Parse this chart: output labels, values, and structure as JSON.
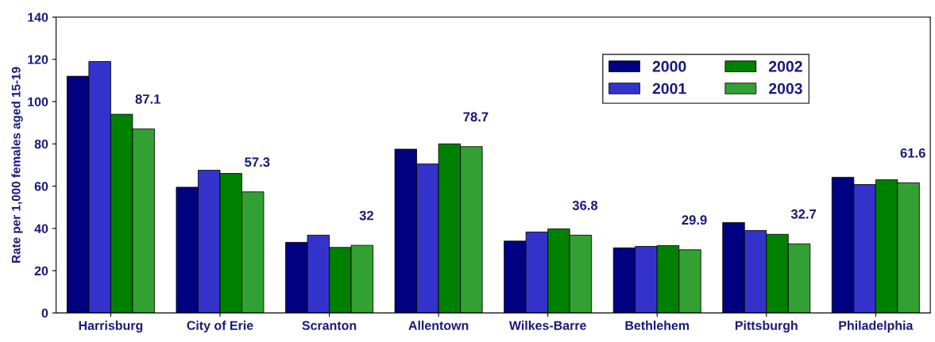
{
  "chart_data": {
    "type": "bar",
    "ylabel": "Rate per 1,000 females aged 15-19",
    "categories": [
      "Harrisburg",
      "City of Erie",
      "Scranton",
      "Allentown",
      "Wilkes-Barre",
      "Bethlehem",
      "Pittsburgh",
      "Philadelphia"
    ],
    "series": [
      {
        "name": "2000",
        "color": "#000080",
        "values": [
          112,
          59.5,
          33.4,
          77.5,
          34,
          30.8,
          42.8,
          64.2
        ]
      },
      {
        "name": "2001",
        "color": "#3333cc",
        "values": [
          119,
          67.5,
          36.8,
          70.5,
          38.3,
          31.5,
          39,
          60.8
        ]
      },
      {
        "name": "2002",
        "color": "#008000",
        "values": [
          94,
          66,
          31,
          80,
          39.8,
          31.9,
          37.2,
          63
        ]
      },
      {
        "name": "2003",
        "color": "#33a033",
        "values": [
          87.1,
          57.3,
          32,
          78.7,
          36.8,
          29.9,
          32.7,
          61.6
        ],
        "value_labels": [
          "87.1",
          "57.3",
          "32",
          "78.7",
          "36.8",
          "29.9",
          "32.7",
          "61.6"
        ]
      }
    ],
    "ylim": [
      0,
      140
    ],
    "yticks": [
      0,
      20,
      40,
      60,
      80,
      100,
      120,
      140
    ],
    "grid": false,
    "legend": "top right"
  }
}
